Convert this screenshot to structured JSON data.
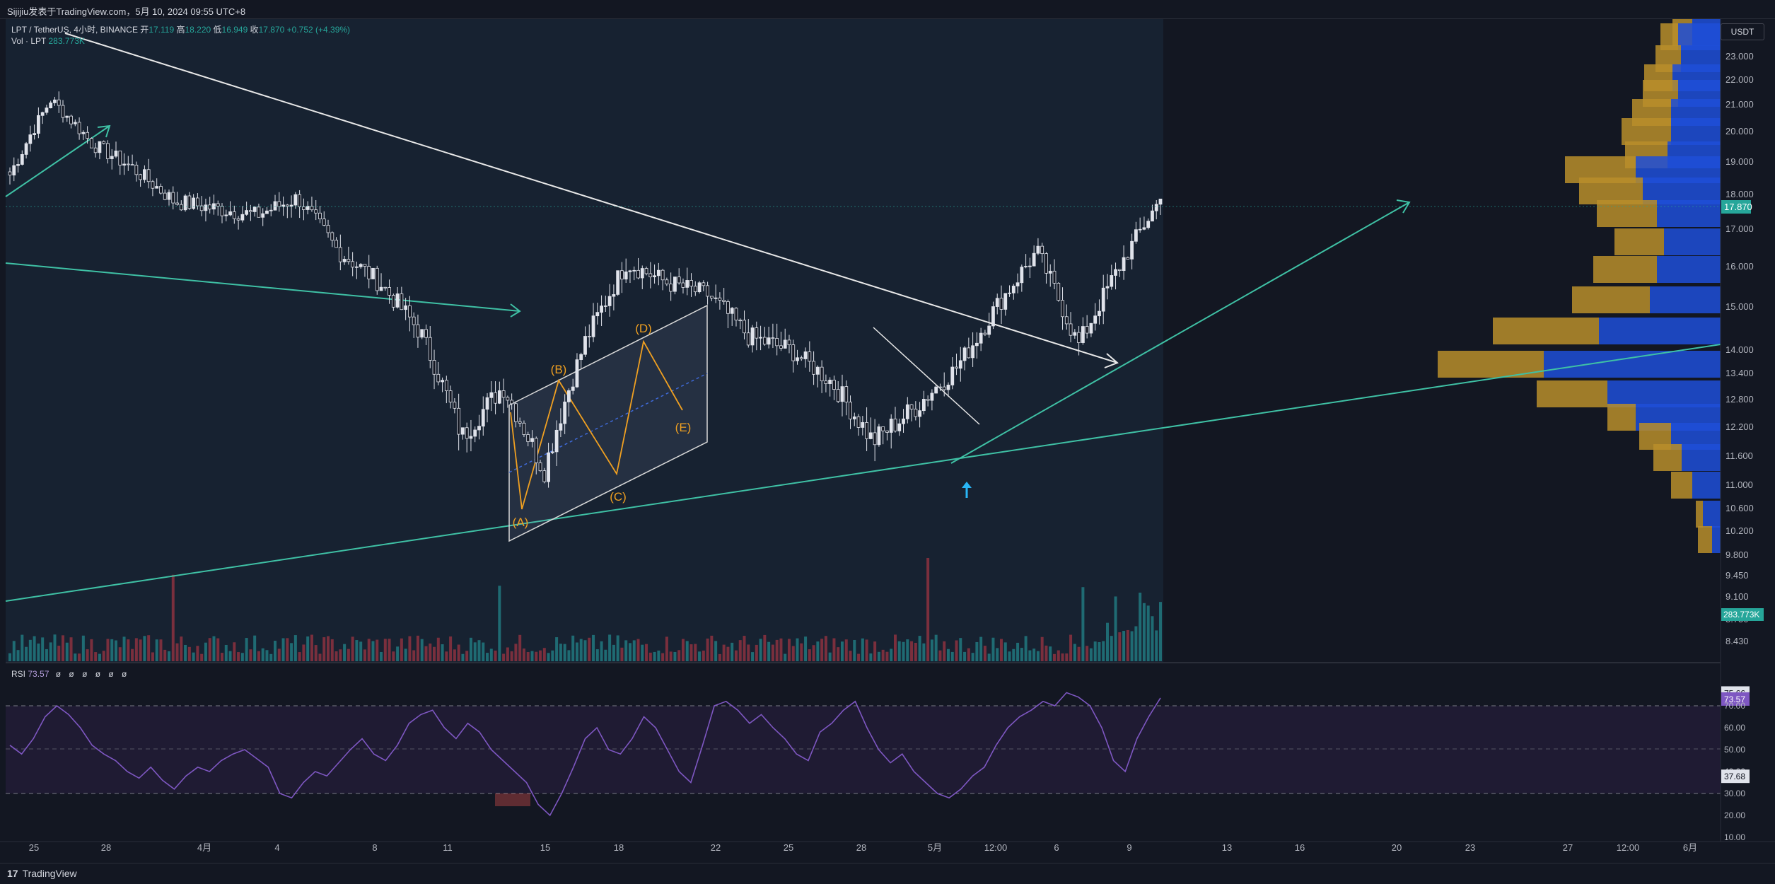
{
  "header": {
    "attribution": "Sijijiu发表于TradingView.com，5月 10, 2024 09:55 UTC+8"
  },
  "legend": {
    "pair": "LPT / TetherUS, 4小时, BINANCE",
    "open_label": "开",
    "open": "17.119",
    "high_label": "高",
    "high": "18.220",
    "low_label": "低",
    "low": "16.949",
    "close_label": "收",
    "close": "17.870",
    "change": "+0.752 (+4.39%)",
    "vol_label": "Vol · LPT",
    "vol_value": "283.773K",
    "rsi_label": "RSI",
    "rsi_value": "73.57",
    "rsi_dots": "ø ø ø ø ø ø"
  },
  "currency_button": "USDT",
  "footer": {
    "brand": "TradingView"
  },
  "colors": {
    "up": "#26a69a",
    "down": "#ef5350",
    "trend": "#3fc1a5",
    "wave": "#f0a021",
    "rsi": "#7e57c2",
    "vp_gold": "#b88e2a",
    "vp_blue": "#1e4fd8"
  },
  "chart_data": [
    {
      "type": "candlestick",
      "symbol": "LPT / TetherUS",
      "timeframe": "4h",
      "y_axis_ticks": [
        "23.000",
        "22.000",
        "21.000",
        "20.000",
        "19.000",
        "18.000",
        "17.000",
        "16.000",
        "15.000",
        "14.000",
        "13.400",
        "12.800",
        "12.200",
        "11.600",
        "11.000",
        "10.600",
        "10.200",
        "9.800",
        "9.450",
        "9.100",
        "8.750",
        "8.430"
      ],
      "x_axis_ticks": [
        "25",
        "28",
        "4月",
        "4",
        "8",
        "11",
        "15",
        "18",
        "22",
        "25",
        "28",
        "5月",
        "12:00",
        "6",
        "9",
        "13",
        "16",
        "20",
        "23",
        "27",
        "12:00",
        "6月"
      ],
      "last_price": "17.870",
      "volume_label": "283.773K",
      "close_path": [
        [
          "25",
          18.6
        ],
        [
          "28",
          21.2
        ],
        [
          "28",
          19.6
        ],
        [
          "4月",
          18.8
        ],
        [
          "4",
          17.8
        ],
        [
          "4",
          17.6
        ],
        [
          "8",
          17.4
        ],
        [
          "8",
          17.9
        ],
        [
          "11",
          16.4
        ],
        [
          "11",
          15.6
        ],
        [
          "11",
          14.4
        ],
        [
          "15",
          12.0
        ],
        [
          "15",
          13.1
        ],
        [
          "18",
          11.3
        ],
        [
          "18",
          14.2
        ],
        [
          "22",
          16.1
        ],
        [
          "22",
          15.6
        ],
        [
          "25",
          15.3
        ],
        [
          "25",
          14.3
        ],
        [
          "28",
          14.0
        ],
        [
          "28",
          13.2
        ],
        [
          "5月",
          11.9
        ],
        [
          "12:00",
          12.6
        ],
        [
          "12:00",
          13.5
        ],
        [
          "6",
          15.0
        ],
        [
          "6",
          16.4
        ],
        [
          "9",
          14.1
        ],
        [
          "9",
          16.0
        ],
        [
          "9",
          17.87
        ]
      ],
      "annotations": [
        "(A)",
        "(B)",
        "(C)",
        "(D)",
        "(E)"
      ]
    },
    {
      "type": "line",
      "name": "RSI",
      "current": 73.57,
      "y_axis_ticks": [
        "75.66",
        "73.57",
        "70.00",
        "60.00",
        "50.00",
        "40.00",
        "37.68",
        "30.00",
        "20.00",
        "10.00"
      ],
      "band": [
        30,
        70
      ],
      "values": [
        52,
        48,
        55,
        65,
        70,
        66,
        60,
        52,
        48,
        45,
        40,
        37,
        42,
        36,
        32,
        38,
        42,
        40,
        45,
        48,
        50,
        46,
        42,
        30,
        28,
        35,
        40,
        38,
        44,
        50,
        55,
        48,
        45,
        52,
        62,
        66,
        68,
        60,
        55,
        62,
        58,
        50,
        45,
        40,
        35,
        25,
        20,
        30,
        42,
        55,
        60,
        50,
        48,
        55,
        65,
        60,
        50,
        40,
        35,
        52,
        70,
        72,
        68,
        62,
        66,
        60,
        55,
        48,
        45,
        58,
        62,
        68,
        72,
        60,
        50,
        44,
        48,
        40,
        35,
        30,
        28,
        32,
        38,
        42,
        52,
        60,
        65,
        68,
        72,
        70,
        76,
        74,
        70,
        60,
        45,
        40,
        55,
        65,
        73.57
      ]
    }
  ]
}
